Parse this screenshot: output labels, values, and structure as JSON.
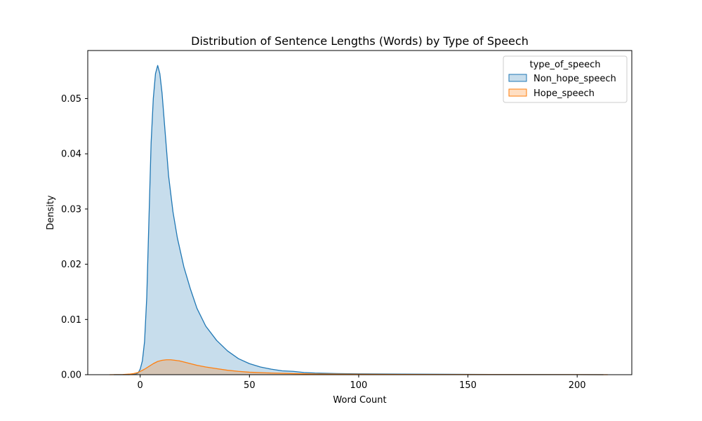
{
  "chart_data": {
    "type": "area",
    "title": "Distribution of Sentence Lengths (Words) by Type of Speech",
    "xlabel": "Word Count",
    "ylabel": "Density",
    "xlim": [
      -24,
      225
    ],
    "ylim": [
      0,
      0.0587
    ],
    "xticks": [
      0,
      50,
      100,
      150,
      200
    ],
    "yticks": [
      0.0,
      0.01,
      0.02,
      0.03,
      0.04,
      0.05
    ],
    "xtick_labels": [
      "0",
      "50",
      "100",
      "150",
      "200"
    ],
    "ytick_labels": [
      "0.00",
      "0.01",
      "0.02",
      "0.03",
      "0.04",
      "0.05"
    ],
    "grid": false,
    "legend": {
      "title": "type_of_speech",
      "placement": "top-right",
      "entries": [
        "Non_hope_speech",
        "Hope_speech"
      ]
    },
    "series": [
      {
        "name": "Non_hope_speech",
        "line_color": "#1f77b4",
        "fill_color": "#1f77b4",
        "points": [
          [
            -12,
            0
          ],
          [
            -5,
            0
          ],
          [
            -2,
            0.0001
          ],
          [
            -1,
            0.0003
          ],
          [
            0,
            0.001
          ],
          [
            1,
            0.0025
          ],
          [
            2,
            0.006
          ],
          [
            3,
            0.014
          ],
          [
            4,
            0.028
          ],
          [
            5,
            0.042
          ],
          [
            6,
            0.05
          ],
          [
            7,
            0.0545
          ],
          [
            8,
            0.056
          ],
          [
            9,
            0.0545
          ],
          [
            10,
            0.051
          ],
          [
            11,
            0.046
          ],
          [
            12,
            0.041
          ],
          [
            13,
            0.036
          ],
          [
            15,
            0.0295
          ],
          [
            17,
            0.0248
          ],
          [
            20,
            0.0195
          ],
          [
            23,
            0.0155
          ],
          [
            26,
            0.012
          ],
          [
            30,
            0.0088
          ],
          [
            35,
            0.0062
          ],
          [
            40,
            0.0043
          ],
          [
            45,
            0.0029
          ],
          [
            50,
            0.002
          ],
          [
            55,
            0.0014
          ],
          [
            60,
            0.001
          ],
          [
            65,
            0.0007
          ],
          [
            70,
            0.0006
          ],
          [
            75,
            0.0004
          ],
          [
            80,
            0.0003
          ],
          [
            90,
            0.0002
          ],
          [
            100,
            0.00015
          ],
          [
            120,
            0.0001
          ],
          [
            140,
            7e-05
          ],
          [
            160,
            5e-05
          ],
          [
            180,
            3e-05
          ],
          [
            200,
            2e-05
          ],
          [
            212,
            0
          ]
        ]
      },
      {
        "name": "Hope_speech",
        "line_color": "#ff7f0e",
        "fill_color": "#ff7f0e",
        "points": [
          [
            -14,
            0
          ],
          [
            -8,
            3e-05
          ],
          [
            -5,
            0.0001
          ],
          [
            -3,
            0.0002
          ],
          [
            -1,
            0.0004
          ],
          [
            0,
            0.0006
          ],
          [
            2,
            0.001
          ],
          [
            4,
            0.0015
          ],
          [
            6,
            0.002
          ],
          [
            8,
            0.0024
          ],
          [
            10,
            0.0026
          ],
          [
            12,
            0.0027
          ],
          [
            14,
            0.0027
          ],
          [
            16,
            0.0026
          ],
          [
            18,
            0.0025
          ],
          [
            20,
            0.0023
          ],
          [
            23,
            0.002
          ],
          [
            26,
            0.0017
          ],
          [
            30,
            0.0014
          ],
          [
            35,
            0.0011
          ],
          [
            40,
            0.0008
          ],
          [
            45,
            0.0006
          ],
          [
            50,
            0.00045
          ],
          [
            60,
            0.0003
          ],
          [
            70,
            0.0002
          ],
          [
            80,
            0.00012
          ],
          [
            100,
            7e-05
          ],
          [
            120,
            4e-05
          ],
          [
            150,
            3e-05
          ],
          [
            180,
            2e-05
          ],
          [
            200,
            2e-05
          ],
          [
            214,
            0
          ]
        ]
      }
    ]
  }
}
